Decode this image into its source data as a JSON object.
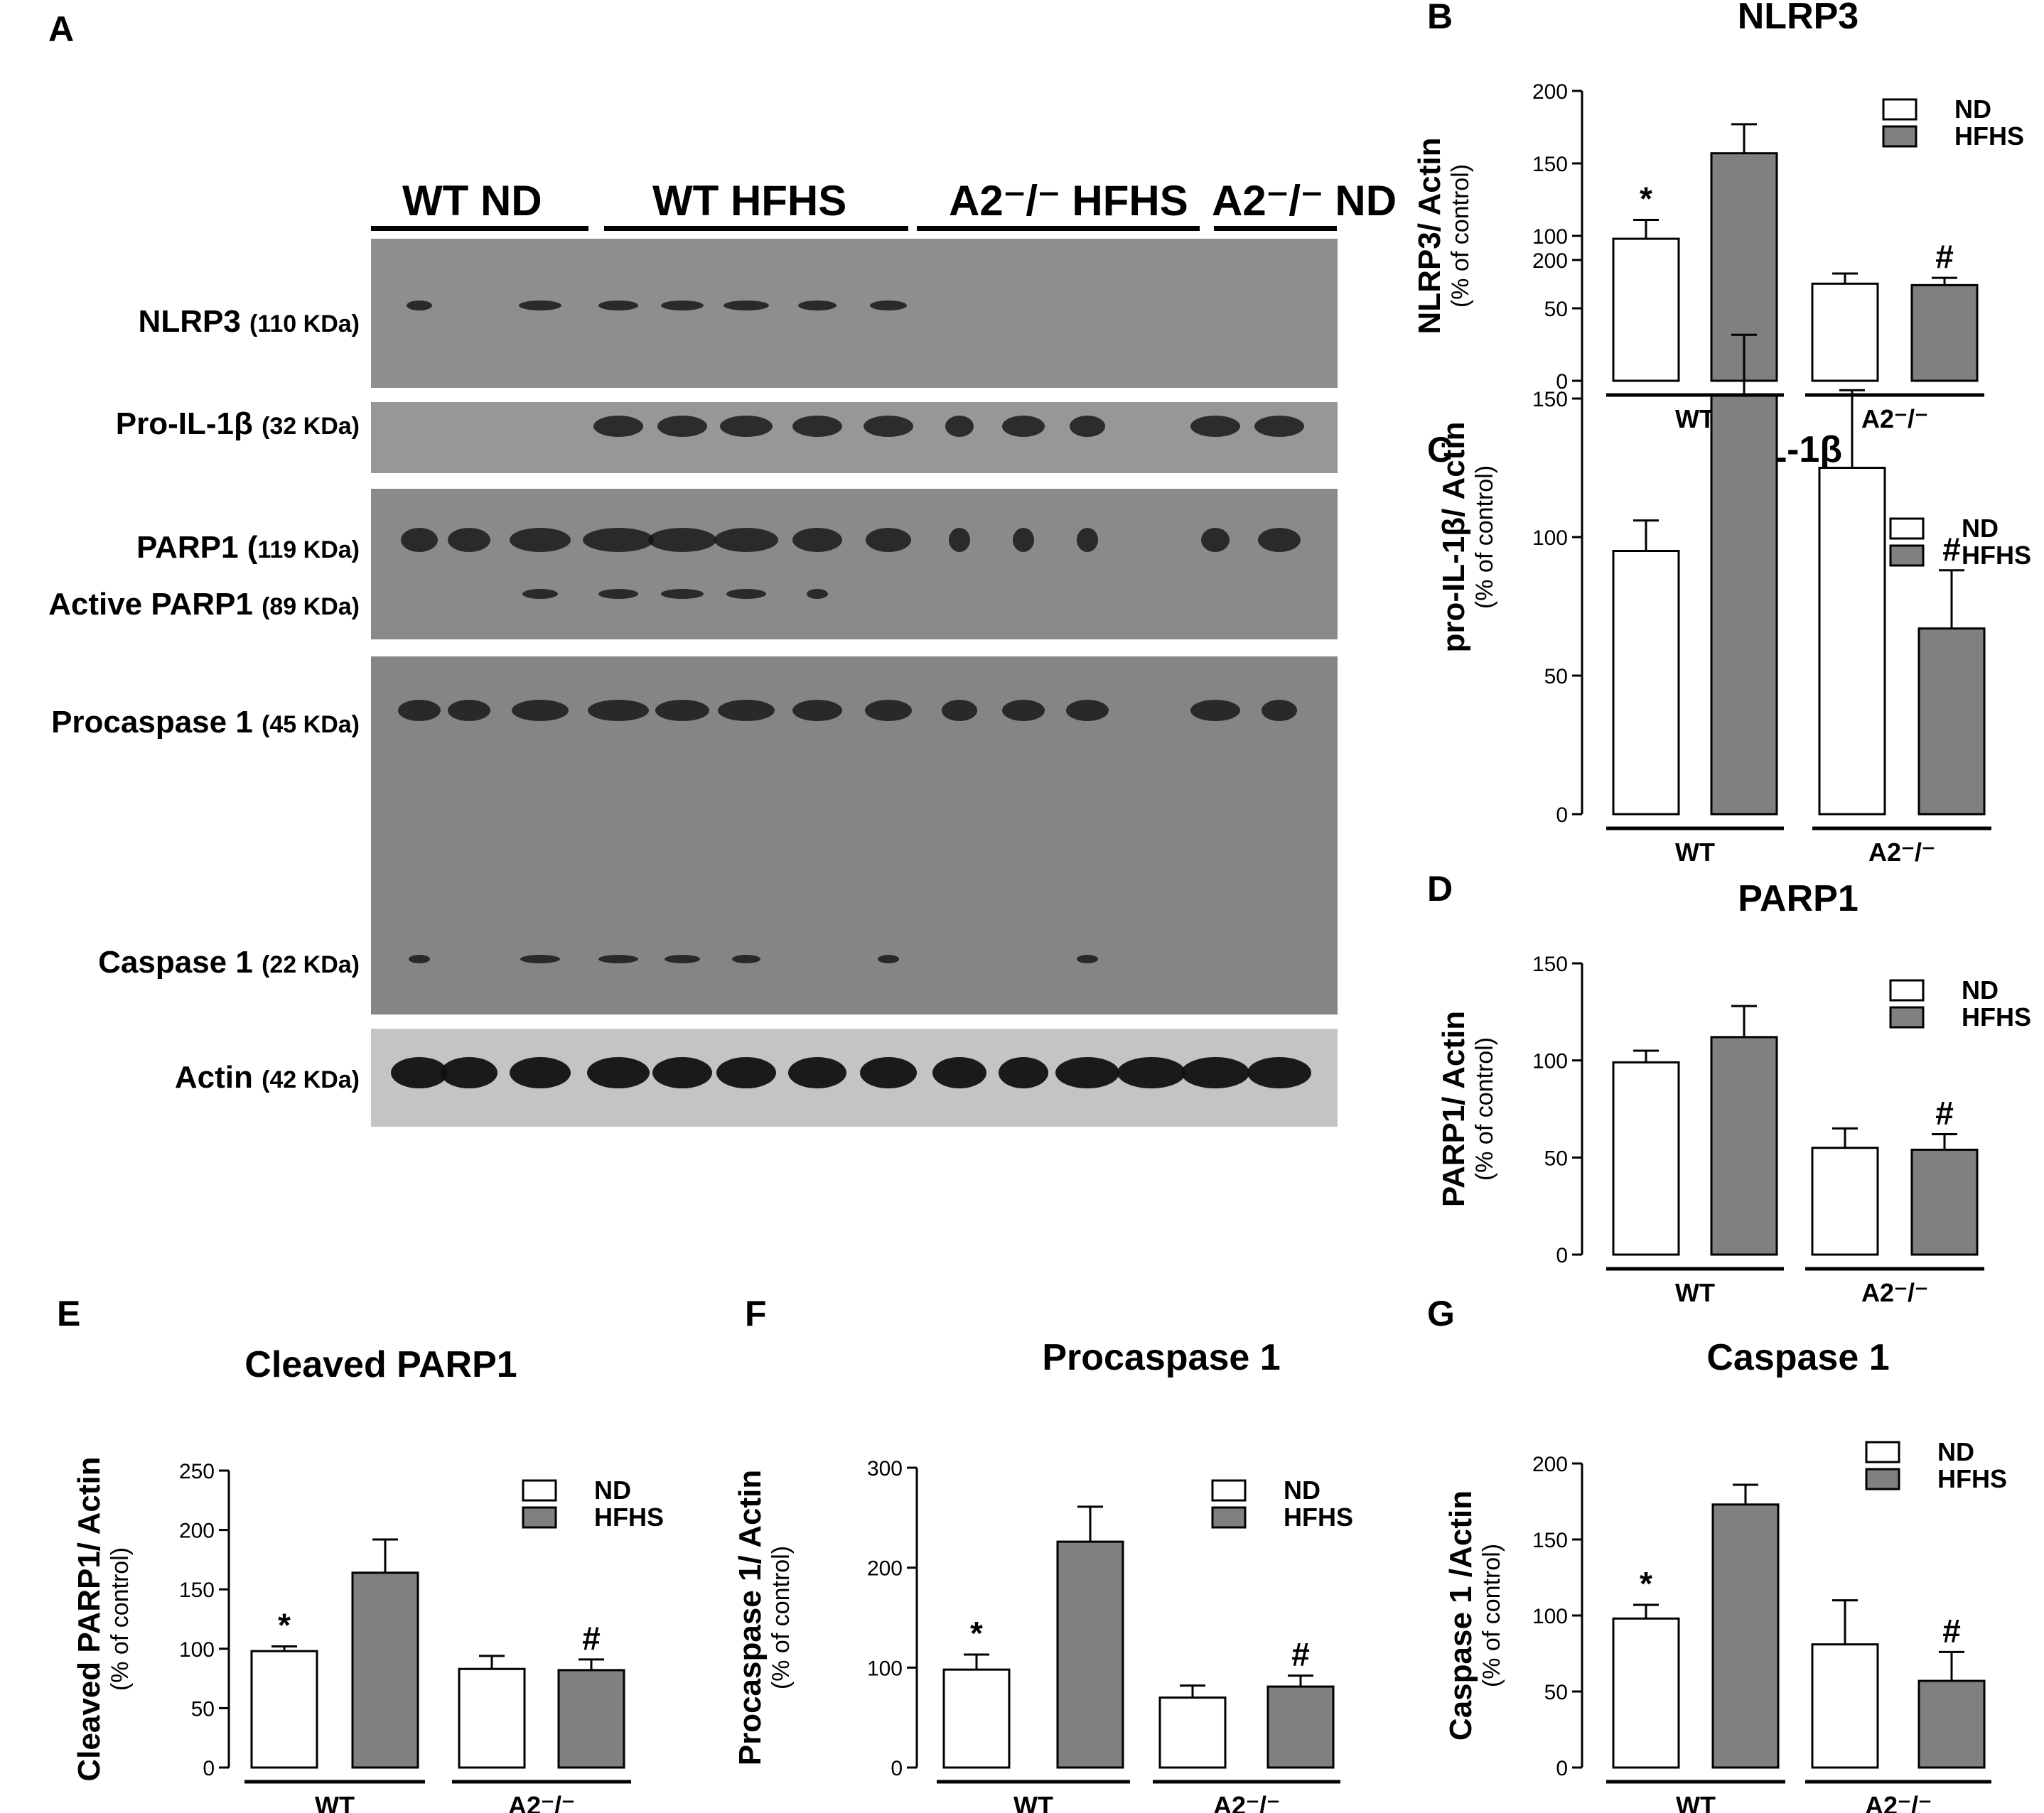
{
  "figure": {
    "panel_A_label": "A",
    "wb_groups": [
      {
        "label": "WT ND"
      },
      {
        "label": "WT HFHS"
      },
      {
        "label": "A2⁻/⁻ HFHS"
      },
      {
        "label": "A2⁻/⁻ ND"
      }
    ],
    "wb_rows": [
      {
        "name": "NLRP3",
        "kda": "(110 KDa)"
      },
      {
        "name": "Pro-IL-1β",
        "kda": "(32 KDa)"
      },
      {
        "name": "PARP1 (",
        "kda": "119 KDa)"
      },
      {
        "name": "Active PARP1",
        "kda": "(89 KDa)"
      },
      {
        "name": "Procaspase 1",
        "kda": "(45 KDa)"
      },
      {
        "name": "Caspase 1",
        "kda": "(22 KDa)"
      },
      {
        "name": "Actin",
        "kda": "(42 KDa)"
      }
    ]
  },
  "chart_data": [
    {
      "panel": "B",
      "type": "bar",
      "title": "NLRP3",
      "ylabel": "NLRP3/ Actin",
      "ylabel2": "(% of control)",
      "groups": [
        "WT",
        "A2⁻/⁻"
      ],
      "yticks": [
        "0",
        "50",
        "100",
        "150",
        "200"
      ],
      "ylim": [
        0,
        200
      ],
      "legend": [
        "ND",
        "HFHS"
      ],
      "series": [
        {
          "name": "ND",
          "color": "#ffffff",
          "values": [
            98,
            67
          ],
          "errors": [
            13,
            7
          ]
        },
        {
          "name": "HFHS",
          "color": "#808080",
          "values": [
            157,
            66
          ],
          "errors": [
            20,
            5
          ]
        }
      ],
      "annotations": [
        [
          "*",
          ""
        ],
        [
          "",
          "#"
        ]
      ]
    },
    {
      "panel": "C",
      "type": "bar",
      "title": "IL-1β",
      "ylabel": "pro-IL-1β/ Actin",
      "ylabel2": "(% of control)",
      "groups": [
        "WT",
        "A2⁻/⁻"
      ],
      "yticks": [
        "0",
        "50",
        "100",
        "150",
        "200"
      ],
      "ylim": [
        0,
        200
      ],
      "legend": [
        "ND",
        "HFHS"
      ],
      "series": [
        {
          "name": "ND",
          "color": "#ffffff",
          "values": [
            95,
            125
          ],
          "errors": [
            11,
            28
          ]
        },
        {
          "name": "HFHS",
          "color": "#808080",
          "values": [
            151,
            67
          ],
          "errors": [
            22,
            21
          ]
        }
      ],
      "annotations": [
        [
          "",
          ""
        ],
        [
          "",
          "#"
        ]
      ]
    },
    {
      "panel": "D",
      "type": "bar",
      "title": "PARP1",
      "ylabel": "PARP1/ Actin",
      "ylabel2": "(% of control)",
      "groups": [
        "WT",
        "A2⁻/⁻"
      ],
      "yticks": [
        "0",
        "50",
        "100",
        "150"
      ],
      "ylim": [
        0,
        150
      ],
      "legend": [
        "ND",
        "HFHS"
      ],
      "series": [
        {
          "name": "ND",
          "color": "#ffffff",
          "values": [
            99,
            55
          ],
          "errors": [
            6,
            10
          ]
        },
        {
          "name": "HFHS",
          "color": "#808080",
          "values": [
            112,
            54
          ],
          "errors": [
            16,
            8
          ]
        }
      ],
      "annotations": [
        [
          "",
          ""
        ],
        [
          "",
          "#"
        ]
      ]
    },
    {
      "panel": "E",
      "type": "bar",
      "title": "Cleaved PARP1",
      "ylabel": "Cleaved PARP1/ Actin",
      "ylabel2": "(% of control)",
      "groups": [
        "WT",
        "A2⁻/⁻"
      ],
      "yticks": [
        "0",
        "50",
        "100",
        "150",
        "200",
        "250"
      ],
      "ylim": [
        0,
        250
      ],
      "legend": [
        "ND",
        "HFHS"
      ],
      "series": [
        {
          "name": "ND",
          "color": "#ffffff",
          "values": [
            98,
            83
          ],
          "errors": [
            4,
            11
          ]
        },
        {
          "name": "HFHS",
          "color": "#808080",
          "values": [
            164,
            82
          ],
          "errors": [
            28,
            9
          ]
        }
      ],
      "annotations": [
        [
          "*",
          ""
        ],
        [
          "",
          "#"
        ]
      ]
    },
    {
      "panel": "F",
      "type": "bar",
      "title": "Procaspase 1",
      "ylabel": "Procaspase 1/ Actin",
      "ylabel2": "(% of control)",
      "groups": [
        "WT",
        "A2⁻/⁻"
      ],
      "yticks": [
        "0",
        "100",
        "200",
        "300"
      ],
      "ylim": [
        0,
        300
      ],
      "legend": [
        "ND",
        "HFHS"
      ],
      "series": [
        {
          "name": "ND",
          "color": "#ffffff",
          "values": [
            98,
            70
          ],
          "errors": [
            15,
            12
          ]
        },
        {
          "name": "HFHS",
          "color": "#808080",
          "values": [
            226,
            81
          ],
          "errors": [
            35,
            11
          ]
        }
      ],
      "annotations": [
        [
          "*",
          ""
        ],
        [
          "",
          "#"
        ]
      ]
    },
    {
      "panel": "G",
      "type": "bar",
      "title": "Caspase 1",
      "ylabel": "Caspase 1 /Actin",
      "ylabel2": "(% of control)",
      "groups": [
        "WT",
        "A2⁻/⁻"
      ],
      "yticks": [
        "0",
        "50",
        "100",
        "150",
        "200"
      ],
      "ylim": [
        0,
        200
      ],
      "legend": [
        "ND",
        "HFHS"
      ],
      "series": [
        {
          "name": "ND",
          "color": "#ffffff",
          "values": [
            98,
            81
          ],
          "errors": [
            9,
            29
          ]
        },
        {
          "name": "HFHS",
          "color": "#808080",
          "values": [
            173,
            57
          ],
          "errors": [
            13,
            19
          ]
        }
      ],
      "annotations": [
        [
          "*",
          ""
        ],
        [
          "",
          "#"
        ]
      ]
    }
  ]
}
